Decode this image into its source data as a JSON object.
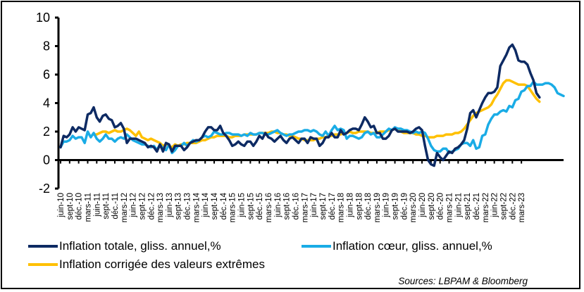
{
  "chart_data": {
    "type": "line",
    "title": "",
    "xlabel": "",
    "ylabel": "",
    "ylim": [
      -2,
      10
    ],
    "yticks": [
      -2,
      0,
      2,
      4,
      6,
      8,
      10
    ],
    "grid": false,
    "legend_position": "bottom",
    "start_month": "juin-10",
    "x_tick_labels": [
      "juin-10",
      "sept-10",
      "déc.-10",
      "mars-11",
      "juin-11",
      "sept-11",
      "déc.-11",
      "mars-12",
      "juin-12",
      "sept-12",
      "déc.-12",
      "mars-13",
      "juin-13",
      "sept-13",
      "déc.-13",
      "mars-14",
      "juin-14",
      "sept-14",
      "déc.-14",
      "mars-15",
      "juin-15",
      "sept-15",
      "déc.-15",
      "mars-16",
      "juin-16",
      "sept-16",
      "déc.-16",
      "mars-17",
      "juin-17",
      "sept-17",
      "déc.-17",
      "mars-18",
      "juin-18",
      "sept-18",
      "déc.-18",
      "mars-19",
      "juin-19",
      "sept-19",
      "déc.-19",
      "mars-20",
      "juin-20",
      "sept-20",
      "déc.-20",
      "mars-21",
      "juin-21",
      "sept-21",
      "déc.-21",
      "mars-22",
      "juin-22",
      "sept-22",
      "déc.-22",
      "mars-23"
    ],
    "series": [
      {
        "name": "Inflation totale, gliss. annuel,%",
        "color": "#0d2a63",
        "values": [
          0.9,
          1.7,
          1.6,
          1.8,
          2.3,
          2.0,
          2.3,
          2.2,
          2.1,
          3.2,
          3.3,
          3.7,
          3.0,
          2.7,
          3.1,
          3.2,
          2.9,
          2.8,
          2.3,
          2.4,
          2.6,
          2.2,
          1.2,
          1.5,
          1.5,
          1.5,
          1.4,
          1.3,
          1.2,
          0.9,
          1.0,
          0.9,
          0.6,
          1.1,
          0.6,
          1.2,
          1.1,
          0.6,
          1.0,
          1.0,
          1.0,
          0.7,
          0.9,
          1.2,
          1.3,
          1.4,
          1.4,
          1.6,
          2.0,
          2.3,
          2.3,
          2.1,
          2.1,
          2.4,
          1.9,
          1.7,
          1.4,
          1.0,
          1.1,
          1.3,
          1.1,
          1.0,
          1.3,
          1.3,
          1.0,
          1.3,
          1.7,
          1.5,
          1.9,
          1.6,
          1.5,
          1.3,
          1.5,
          1.7,
          1.4,
          1.2,
          1.5,
          1.6,
          1.4,
          1.2,
          1.5,
          1.5,
          1.2,
          1.6,
          1.5,
          1.5,
          1.0,
          1.2,
          1.6,
          1.6,
          1.9,
          1.6,
          1.6,
          2.1,
          1.8,
          1.9,
          2.1,
          2.2,
          2.2,
          2.1,
          2.5,
          3.0,
          2.7,
          2.3,
          2.4,
          1.9,
          1.9,
          1.5,
          1.5,
          1.7,
          2.1,
          2.2,
          2.0,
          2.0,
          2.0,
          2.0,
          1.9,
          2.0,
          2.2,
          2.3,
          2.1,
          1.0,
          0.0,
          -0.3,
          -0.4,
          0.5,
          0.2,
          0.0,
          0.3,
          0.6,
          0.5,
          0.8,
          0.9,
          1.1,
          1.4,
          2.2,
          3.3,
          3.5,
          3.0,
          3.5,
          4.0,
          4.4,
          4.7,
          4.7,
          4.8,
          5.1,
          6.6,
          7.0,
          7.4,
          7.9,
          8.1,
          7.7,
          7.0,
          6.9,
          6.9,
          6.7,
          6.1,
          5.6,
          4.7,
          4.4
        ],
        "approximate": true
      },
      {
        "name": "Inflation cœur, gliss. annuel,%",
        "color": "#1aace6",
        "values": [
          0.9,
          1.3,
          1.3,
          1.4,
          1.7,
          1.5,
          1.6,
          1.6,
          1.2,
          2.0,
          1.6,
          1.9,
          1.5,
          1.3,
          1.5,
          1.8,
          1.5,
          1.5,
          1.3,
          1.5,
          1.6,
          1.5,
          1.8,
          1.6,
          1.4,
          1.3,
          1.2,
          1.1,
          1.1,
          1.0,
          0.9,
          1.0,
          0.7,
          1.1,
          0.8,
          0.7,
          1.1,
          0.5,
          0.7,
          1.0,
          1.0,
          1.2,
          1.0,
          1.2,
          1.4,
          1.3,
          1.4,
          1.6,
          1.7,
          1.6,
          1.7,
          2.0,
          1.9,
          1.8,
          1.8,
          1.9,
          1.9,
          1.8,
          1.8,
          1.8,
          1.7,
          1.8,
          1.7,
          1.9,
          1.8,
          1.8,
          1.9,
          1.9,
          1.8,
          1.8,
          1.9,
          2.0,
          2.1,
          1.9,
          1.8,
          1.7,
          1.8,
          1.8,
          1.9,
          2.0,
          2.0,
          2.1,
          2.1,
          2.0,
          2.1,
          2.0,
          1.8,
          1.7,
          2.0,
          1.7,
          2.1,
          2.4,
          2.1,
          2.2,
          2.1,
          1.5,
          1.7,
          1.7,
          1.6,
          1.5,
          1.6,
          1.9,
          2.0,
          1.8,
          1.9,
          1.6,
          1.6,
          1.8,
          2.0,
          2.2,
          2.1,
          2.3,
          2.2,
          2.2,
          2.1,
          2.1,
          2.0,
          1.9,
          2.0,
          1.9,
          2.0,
          1.9,
          1.5,
          1.0,
          0.7,
          0.6,
          0.6,
          0.8,
          0.8,
          0.5,
          0.6,
          0.7,
          0.8,
          1.1,
          1.2,
          1.2,
          1.0,
          1.4,
          0.8,
          0.9,
          1.7,
          1.8,
          2.5,
          2.9,
          3.2,
          3.2,
          3.4,
          3.5,
          3.4,
          3.8,
          3.7,
          4.2,
          4.3,
          4.8,
          4.9,
          5.2,
          5.2,
          5.5,
          5.3,
          5.3,
          5.3,
          5.4,
          5.4,
          5.3,
          5.1,
          4.7,
          4.6,
          4.5
        ],
        "approximate": true
      },
      {
        "name": "Inflation corrigée des valeurs extrêmes",
        "color": "#ffc000",
        "values": [
          null,
          null,
          null,
          null,
          null,
          null,
          null,
          null,
          null,
          null,
          null,
          1.8,
          1.8,
          1.9,
          2.0,
          2.0,
          1.9,
          2.0,
          2.1,
          2.0,
          2.0,
          2.1,
          2.2,
          2.1,
          1.9,
          1.7,
          2.0,
          1.6,
          1.5,
          1.4,
          1.5,
          1.4,
          1.3,
          1.2,
          1.0,
          1.1,
          1.0,
          0.9,
          1.1,
          1.0,
          1.1,
          1.1,
          1.2,
          1.2,
          1.2,
          1.2,
          1.3,
          1.4,
          1.4,
          1.5,
          1.6,
          1.6,
          1.7,
          1.7,
          1.7,
          1.7,
          1.6,
          1.6,
          1.7,
          1.7,
          1.7,
          1.8,
          1.8,
          1.8,
          1.8,
          1.8,
          1.9,
          1.9,
          1.9,
          1.9,
          2.0,
          2.0,
          1.9,
          1.9,
          1.8,
          1.8,
          1.7,
          1.7,
          1.6,
          1.5,
          1.5,
          1.4,
          1.4,
          1.4,
          1.4,
          1.5,
          1.5,
          1.6,
          1.6,
          1.7,
          1.7,
          1.8,
          1.8,
          1.8,
          1.9,
          1.9,
          2.0,
          1.9,
          1.9,
          2.0,
          2.0,
          2.0,
          2.0,
          1.9,
          1.9,
          1.9,
          2.0,
          2.0,
          2.0,
          2.1,
          2.1,
          2.2,
          2.1,
          2.0,
          1.9,
          1.9,
          1.9,
          1.9,
          1.8,
          1.8,
          1.7,
          1.7,
          1.6,
          1.6,
          1.6,
          1.7,
          1.7,
          1.7,
          1.8,
          1.8,
          1.8,
          1.9,
          1.9,
          2.0,
          2.2,
          2.5,
          2.8,
          3.1,
          3.3,
          3.4,
          3.5,
          3.6,
          3.7,
          3.9,
          4.3,
          4.6,
          5.0,
          5.4,
          5.6,
          5.6,
          5.5,
          5.4,
          5.3,
          5.3,
          5.3,
          5.2,
          4.9,
          4.6,
          4.3,
          4.1
        ],
        "approximate": true
      }
    ]
  },
  "legend": [
    {
      "label": "Inflation totale, gliss. annuel,%",
      "color": "#0d2a63"
    },
    {
      "label": "Inflation cœur, gliss. annuel,%",
      "color": "#1aace6"
    },
    {
      "label": "Inflation corrigée des valeurs extrêmes",
      "color": "#ffc000"
    }
  ],
  "source": "Sources: LBPAM & Bloomberg"
}
